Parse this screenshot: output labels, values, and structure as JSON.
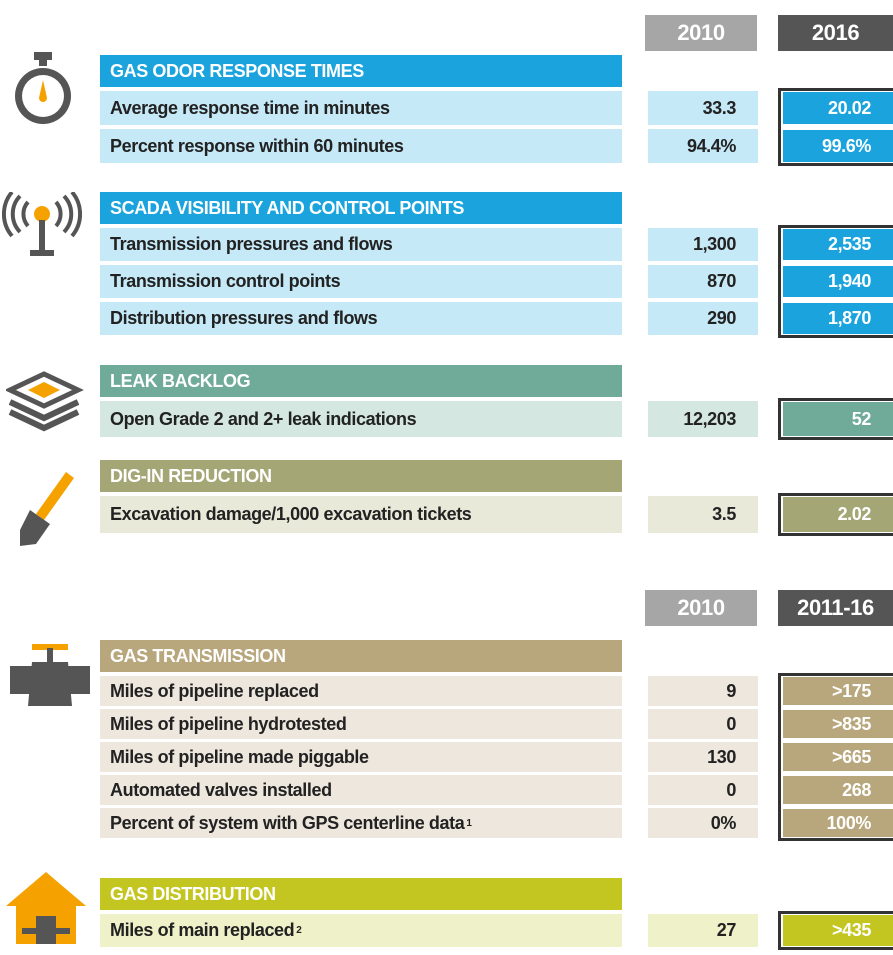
{
  "headers": [
    {
      "col1": "2010",
      "col2": "2016"
    },
    {
      "col1": "2010",
      "col2": "2011-16"
    }
  ],
  "sections": [
    {
      "title": "GAS ODOR RESPONSE TIMES",
      "rows": [
        {
          "label": "Average response time in minutes",
          "v1": "33.3",
          "v2": "20.02"
        },
        {
          "label": "Percent response within 60 minutes",
          "v1": "94.4%",
          "v2": "99.6%"
        }
      ]
    },
    {
      "title": "SCADA VISIBILITY AND CONTROL POINTS",
      "rows": [
        {
          "label": "Transmission pressures and flows",
          "v1": "1,300",
          "v2": "2,535"
        },
        {
          "label": "Transmission control points",
          "v1": "870",
          "v2": "1,940"
        },
        {
          "label": "Distribution pressures and flows",
          "v1": "290",
          "v2": "1,870"
        }
      ]
    },
    {
      "title": "LEAK BACKLOG",
      "rows": [
        {
          "label": "Open Grade 2 and 2+ leak indications",
          "v1": "12,203",
          "v2": "52"
        }
      ]
    },
    {
      "title": "DIG-IN REDUCTION",
      "rows": [
        {
          "label": "Excavation damage/1,000 excavation tickets",
          "v1": "3.5",
          "v2": "2.02"
        }
      ]
    },
    {
      "title": "GAS TRANSMISSION",
      "rows": [
        {
          "label": "Miles of pipeline replaced",
          "v1": "9",
          "v2": ">175"
        },
        {
          "label": "Miles of pipeline hydrotested",
          "v1": "0",
          "v2": ">835"
        },
        {
          "label": "Miles of pipeline made piggable",
          "v1": "130",
          "v2": ">665"
        },
        {
          "label": "Automated valves installed",
          "v1": "0",
          "v2": "268"
        },
        {
          "label": "Percent of system with GPS centerline data",
          "note": "1",
          "v1": "0%",
          "v2": "100%"
        }
      ]
    },
    {
      "title": "GAS DISTRIBUTION",
      "rows": [
        {
          "label": "Miles of main replaced",
          "note": "2",
          "v1": "27",
          "v2": ">435"
        }
      ]
    }
  ]
}
